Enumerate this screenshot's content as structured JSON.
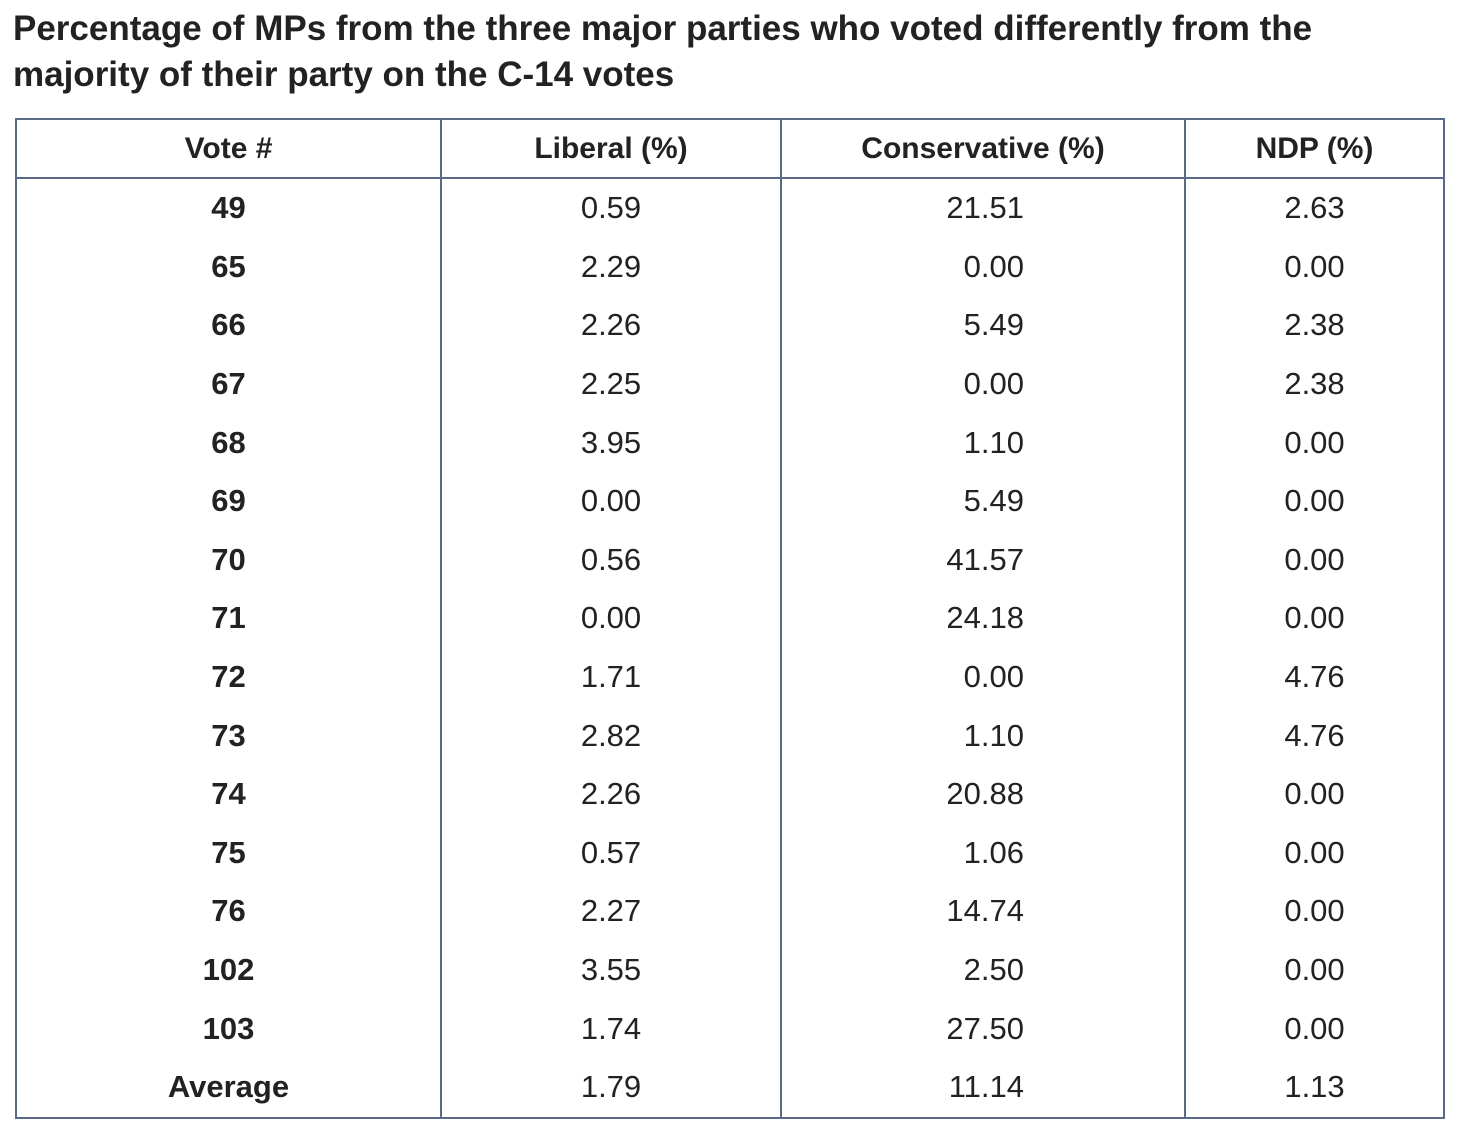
{
  "title_lines": [
    "Percentage of MPs from the three major parties who voted differently from the",
    "majority of their party on the C-14 votes"
  ],
  "chart_data": {
    "type": "table",
    "title": "Percentage of MPs from the three major parties who voted differently from the majority of their party on the C-14 votes",
    "columns": [
      "Vote #",
      "Liberal (%)",
      "Conservative (%)",
      "NDP (%)"
    ],
    "rows": [
      [
        "49",
        "0.59",
        "21.51",
        "2.63"
      ],
      [
        "65",
        "2.29",
        "0.00",
        "0.00"
      ],
      [
        "66",
        "2.26",
        "5.49",
        "2.38"
      ],
      [
        "67",
        "2.25",
        "0.00",
        "2.38"
      ],
      [
        "68",
        "3.95",
        "1.10",
        "0.00"
      ],
      [
        "69",
        "0.00",
        "5.49",
        "0.00"
      ],
      [
        "70",
        "0.56",
        "41.57",
        "0.00"
      ],
      [
        "71",
        "0.00",
        "24.18",
        "0.00"
      ],
      [
        "72",
        "1.71",
        "0.00",
        "4.76"
      ],
      [
        "73",
        "2.82",
        "1.10",
        "4.76"
      ],
      [
        "74",
        "2.26",
        "20.88",
        "0.00"
      ],
      [
        "75",
        "0.57",
        "1.06",
        "0.00"
      ],
      [
        "76",
        "2.27",
        "14.74",
        "0.00"
      ],
      [
        "102",
        "3.55",
        "2.50",
        "0.00"
      ],
      [
        "103",
        "1.74",
        "27.50",
        "0.00"
      ],
      [
        "Average",
        "1.79",
        "11.14",
        "1.13"
      ]
    ]
  }
}
